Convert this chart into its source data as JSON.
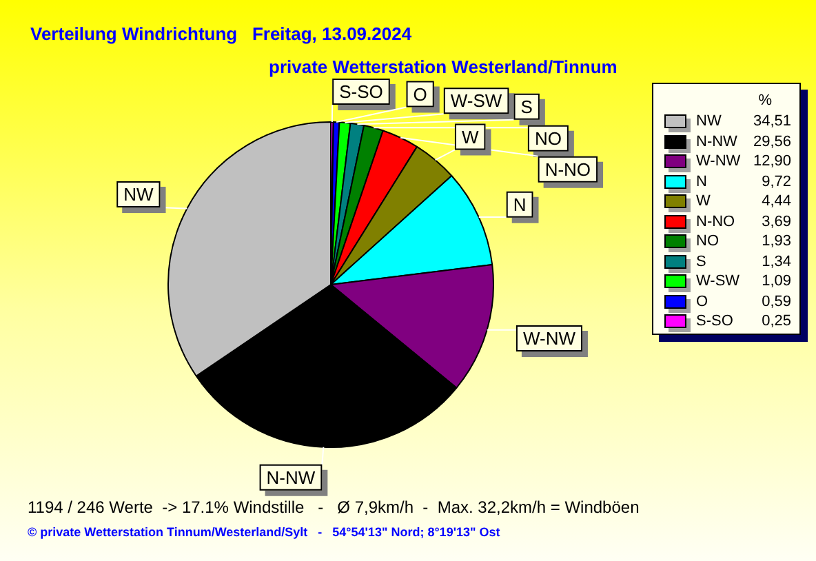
{
  "chart_data": {
    "type": "pie",
    "title": "Verteilung Windrichtung   Freitag, 13.09.2024",
    "subtitle": "private Wetterstation Westerland/Tinnum",
    "categories": [
      "S-SO",
      "O",
      "W-SW",
      "S",
      "NO",
      "N-NO",
      "W",
      "N",
      "W-NW",
      "N-NW",
      "NW"
    ],
    "values": [
      0.25,
      0.59,
      1.09,
      1.34,
      1.93,
      3.69,
      4.44,
      9.72,
      12.9,
      29.56,
      34.51
    ],
    "colors": [
      "#ff00ff",
      "#0000ff",
      "#00ff00",
      "#008080",
      "#008000",
      "#ff0000",
      "#808000",
      "#00ffff",
      "#800080",
      "#000000",
      "#c0c0c0"
    ],
    "value_labels": [
      "0,25",
      "0,59",
      "1,09",
      "1,34",
      "1,93",
      "3,69",
      "4,44",
      "9,72",
      "12,90",
      "29,56",
      "34,51"
    ],
    "legend": "right",
    "legend_title": "%",
    "annotations": [
      "1194 / 246 Werte  -> 17.1% Windstille   -   Ø 7,9km/h  -  Max. 32,2km/h = Windböen",
      "© private Wetterstation Tinnum/Westerland/Sylt   -   54°54'13\" Nord; 8°19'13\" Ost"
    ]
  }
}
